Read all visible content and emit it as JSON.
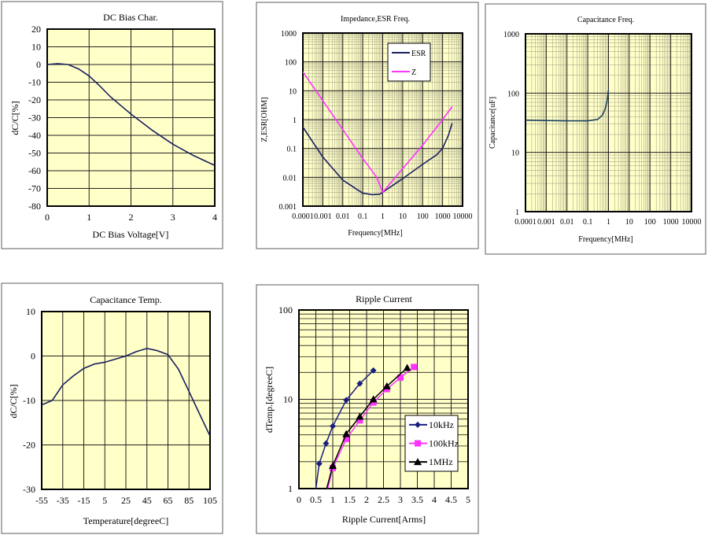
{
  "chart_data": [
    {
      "id": "dcbias",
      "type": "line",
      "title": "DC Bias Char.",
      "xlabel": "DC Bias Voltage[V]",
      "ylabel": "dC/C[%]",
      "xscale": "linear",
      "yscale": "linear",
      "xlim": [
        0,
        4
      ],
      "ylim": [
        -80,
        20
      ],
      "grid": true,
      "xticks": [
        "0",
        "1",
        "2",
        "3",
        "4"
      ],
      "yticks": [
        "20",
        "10",
        "0",
        "-10",
        "-20",
        "-30",
        "-40",
        "-50",
        "-60",
        "-70",
        "-80"
      ],
      "series": [
        {
          "color": "#1a1f5e",
          "x": [
            0,
            0.25,
            0.5,
            0.75,
            1,
            1.25,
            1.5,
            1.75,
            2,
            2.5,
            3,
            3.5,
            4
          ],
          "y": [
            0,
            0.5,
            0,
            -2.5,
            -6.5,
            -12,
            -18,
            -23,
            -28,
            -37,
            -45,
            -51.5,
            -57
          ]
        }
      ]
    },
    {
      "id": "impedance",
      "type": "line",
      "title": "Impedance,ESR Freq.",
      "xlabel": "Frequency[MHz]",
      "ylabel": "Z,ESR[OHM]",
      "xscale": "log",
      "yscale": "log",
      "xlim": [
        0.0001,
        10000
      ],
      "ylim": [
        0.001,
        1000
      ],
      "grid": true,
      "legend": "top-right",
      "xticks": [
        "0.0001",
        "0.001",
        "0.01",
        "0.1",
        "1",
        "10",
        "100",
        "1000",
        "10000"
      ],
      "yticks": [
        "1000",
        "100",
        "10",
        "1",
        "0.1",
        "0.01",
        "0.001"
      ],
      "series": [
        {
          "name": "ESR",
          "color": "#1a1f5e",
          "x": [
            0.0001,
            0.001,
            0.01,
            0.1,
            0.3,
            0.7,
            1,
            2,
            10,
            100,
            500,
            1000,
            2000,
            3000
          ],
          "y": [
            0.55,
            0.05,
            0.008,
            0.0028,
            0.0025,
            0.0026,
            0.003,
            0.0042,
            0.009,
            0.028,
            0.06,
            0.1,
            0.3,
            0.75
          ]
        },
        {
          "name": "Z",
          "color": "#ff33ff",
          "x": [
            0.0001,
            0.001,
            0.01,
            0.1,
            0.5,
            1,
            10,
            100,
            1000,
            3000
          ],
          "y": [
            45,
            4.5,
            0.45,
            0.045,
            0.01,
            0.003,
            0.02,
            0.13,
            1,
            2.8
          ]
        }
      ]
    },
    {
      "id": "capfreq",
      "type": "line",
      "title": "Capacitance Freq.",
      "xlabel": "Frequency[MHz]",
      "ylabel": "Capacitance[uF]",
      "xscale": "log",
      "yscale": "log",
      "xlim": [
        0.0001,
        10000
      ],
      "ylim": [
        1,
        1000
      ],
      "grid": true,
      "xticks": [
        "0.0001",
        "0.001",
        "0.01",
        "0.1",
        "1",
        "10",
        "100",
        "1000",
        "10000"
      ],
      "yticks": [
        "1000",
        "100",
        "10",
        "1"
      ],
      "series": [
        {
          "color": "#1a3f5e",
          "x": [
            0.0001,
            0.001,
            0.01,
            0.1,
            0.3,
            0.5,
            0.7,
            0.85,
            1
          ],
          "y": [
            35,
            34.5,
            34,
            34,
            36,
            42,
            55,
            72,
            110
          ]
        }
      ]
    },
    {
      "id": "captemp",
      "type": "line",
      "title": "Capacitance Temp.",
      "xlabel": "Temperature[degreeC]",
      "ylabel": "dC/C[%]",
      "xscale": "linear",
      "yscale": "linear",
      "xlim": [
        -55,
        105
      ],
      "ylim": [
        -30,
        10
      ],
      "grid": true,
      "xticks": [
        "-55",
        "-35",
        "-15",
        "5",
        "25",
        "45",
        "65",
        "85",
        "105"
      ],
      "yticks": [
        "10",
        "0",
        "-10",
        "-20",
        "-30"
      ],
      "series": [
        {
          "color": "#1a1f5e",
          "x": [
            -55,
            -45,
            -35,
            -25,
            -15,
            -5,
            5,
            15,
            25,
            35,
            45,
            55,
            65,
            75,
            85,
            95,
            105
          ],
          "y": [
            -11,
            -10,
            -6.5,
            -4.5,
            -2.8,
            -1.8,
            -1.4,
            -0.7,
            0,
            1,
            1.7,
            1.2,
            0.3,
            -3,
            -8,
            -13,
            -18
          ]
        }
      ]
    },
    {
      "id": "ripple",
      "type": "line",
      "title": "Ripple Current",
      "xlabel": "Ripple Current[Arms]",
      "ylabel": "dTemp.[degreeC]",
      "xscale": "linear",
      "yscale": "log",
      "xlim": [
        0,
        5
      ],
      "ylim": [
        1,
        100
      ],
      "grid": true,
      "legend": "bottom-right",
      "xticks": [
        "0",
        "0.5",
        "1",
        "1.5",
        "2",
        "2.5",
        "3",
        "3.5",
        "4",
        "4.5",
        "5"
      ],
      "yticks": [
        "100",
        "10",
        "1"
      ],
      "series": [
        {
          "name": "10kHz",
          "color": "#1a1f7e",
          "marker": "diamond",
          "x": [
            0.5,
            0.6,
            0.8,
            1.0,
            1.4,
            1.8,
            2.2
          ],
          "y": [
            1,
            1.9,
            3.2,
            5,
            9.8,
            15,
            21
          ]
        },
        {
          "name": "100kHz",
          "color": "#ff33ff",
          "marker": "square",
          "x": [
            0.85,
            1.0,
            1.4,
            1.8,
            2.2,
            2.6,
            3.0,
            3.4
          ],
          "y": [
            1,
            1.7,
            3.6,
            5.8,
            9.2,
            13,
            17.5,
            23
          ]
        },
        {
          "name": "1MHz",
          "color": "#000000",
          "marker": "triangle",
          "x": [
            0.82,
            1.0,
            1.4,
            1.8,
            2.2,
            2.6,
            3.2
          ],
          "y": [
            1,
            1.8,
            4.1,
            6.4,
            10,
            14,
            22.5
          ]
        }
      ]
    }
  ]
}
